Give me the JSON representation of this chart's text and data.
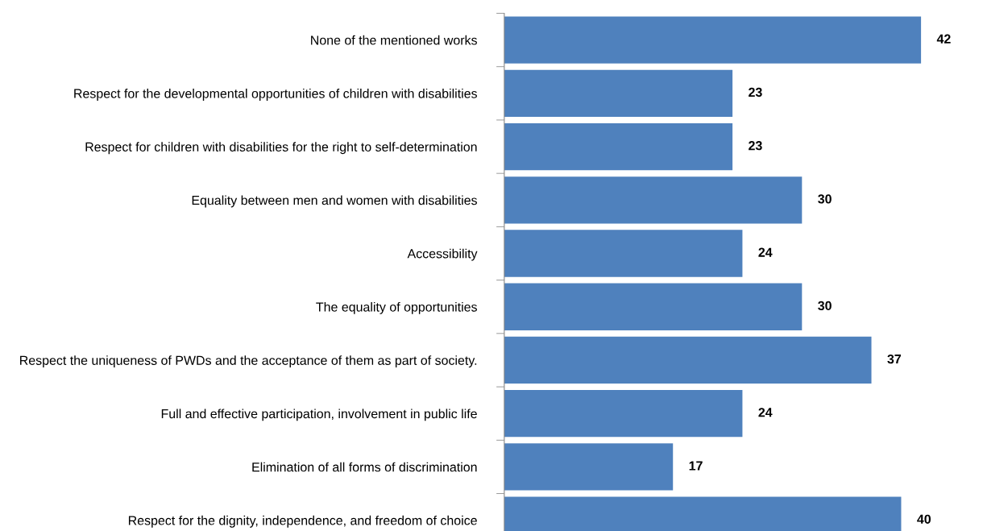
{
  "chart_data": {
    "type": "bar",
    "orientation": "horizontal",
    "categories": [
      "None of the mentioned works",
      "Respect for the developmental opportunities of children with disabilities",
      "Respect for children with disabilities for the right to self-determination",
      "Equality between men and women with disabilities",
      "Accessibility",
      "The equality of opportunities",
      "Respect the uniqueness of PWDs and the acceptance of them as part of society.",
      "Full and effective participation, involvement in public life",
      "Elimination of all forms of discrimination",
      "Respect for the dignity, independence, and freedom of choice"
    ],
    "values": [
      42,
      23,
      23,
      30,
      24,
      30,
      37,
      24,
      17,
      40
    ],
    "color": "#4f81bd",
    "data_labels": true,
    "grid": false,
    "tick_labels": "y"
  }
}
